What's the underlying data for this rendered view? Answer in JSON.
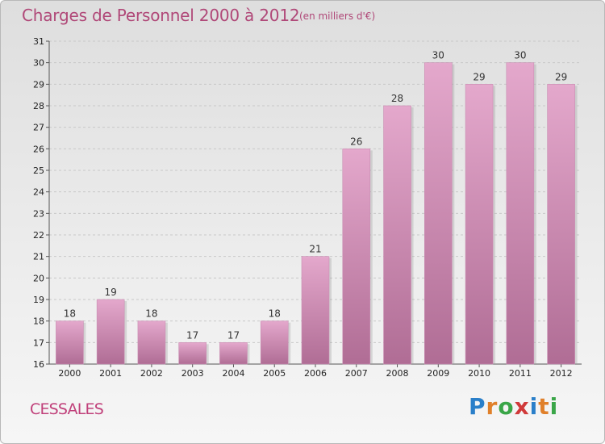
{
  "header": {
    "title": "Charges de Personnel 2000 à 2012",
    "subtitle": "(en milliers d'€)"
  },
  "footer": {
    "commune": "CESSALES",
    "logo_text": "Proxiti",
    "logo_letters": [
      {
        "ch": "P",
        "color": "#2a7fc9"
      },
      {
        "ch": "r",
        "color": "#e0802a"
      },
      {
        "ch": "o",
        "color": "#3aa648"
      },
      {
        "ch": "x",
        "color": "#d03a3a"
      },
      {
        "ch": "i",
        "color": "#2a7fc9"
      },
      {
        "ch": "t",
        "color": "#e0802a"
      },
      {
        "ch": "i",
        "color": "#3aa648"
      }
    ]
  },
  "chart_data": {
    "type": "bar",
    "categories": [
      "2000",
      "2001",
      "2002",
      "2003",
      "2004",
      "2005",
      "2006",
      "2007",
      "2008",
      "2009",
      "2010",
      "2011",
      "2012"
    ],
    "values": [
      18,
      19,
      18,
      17,
      17,
      18,
      21,
      26,
      28,
      30,
      29,
      30,
      29
    ],
    "title": "Charges de Personnel 2000 à 2012",
    "subtitle": "(en milliers d'€)",
    "xlabel": "",
    "ylabel": "",
    "ylim": [
      16,
      31
    ],
    "yticks": [
      16,
      17,
      18,
      19,
      20,
      21,
      22,
      23,
      24,
      25,
      26,
      27,
      28,
      29,
      30,
      31
    ],
    "grid": "horizontal-dashed",
    "bar_color_top": "#e4a8cc",
    "bar_color_bottom": "#b06d95",
    "legend": "none"
  }
}
